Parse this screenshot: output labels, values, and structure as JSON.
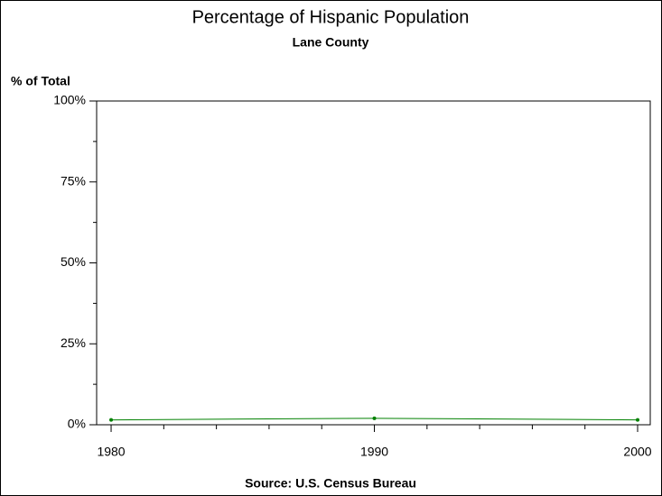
{
  "chart_data": {
    "type": "line",
    "title": "Percentage of Hispanic Population",
    "subtitle": "Lane County",
    "y_label": "% of Total",
    "source": "Source: U.S. Census Bureau",
    "x": [
      1980,
      1990,
      2000
    ],
    "series": [
      {
        "color": "#008000",
        "values": [
          1.5,
          2,
          1.5
        ]
      }
    ],
    "xlim": [
      1979.45,
      2000.48
    ],
    "xticks": [
      1980,
      1990,
      2000
    ],
    "xminorticks": [
      1982,
      1984,
      1986,
      1988,
      1992,
      1994,
      1996,
      1998
    ],
    "ylim": [
      0,
      100
    ],
    "yticks": [
      {
        "value": 0,
        "label": "0%"
      },
      {
        "value": 25,
        "label": "25%"
      },
      {
        "value": 50,
        "label": "50%"
      },
      {
        "value": 75,
        "label": "75%"
      },
      {
        "value": 100,
        "label": "100%"
      }
    ],
    "yminorticks": [
      12.5,
      37.5,
      62.5,
      87.5
    ],
    "grid": false
  }
}
